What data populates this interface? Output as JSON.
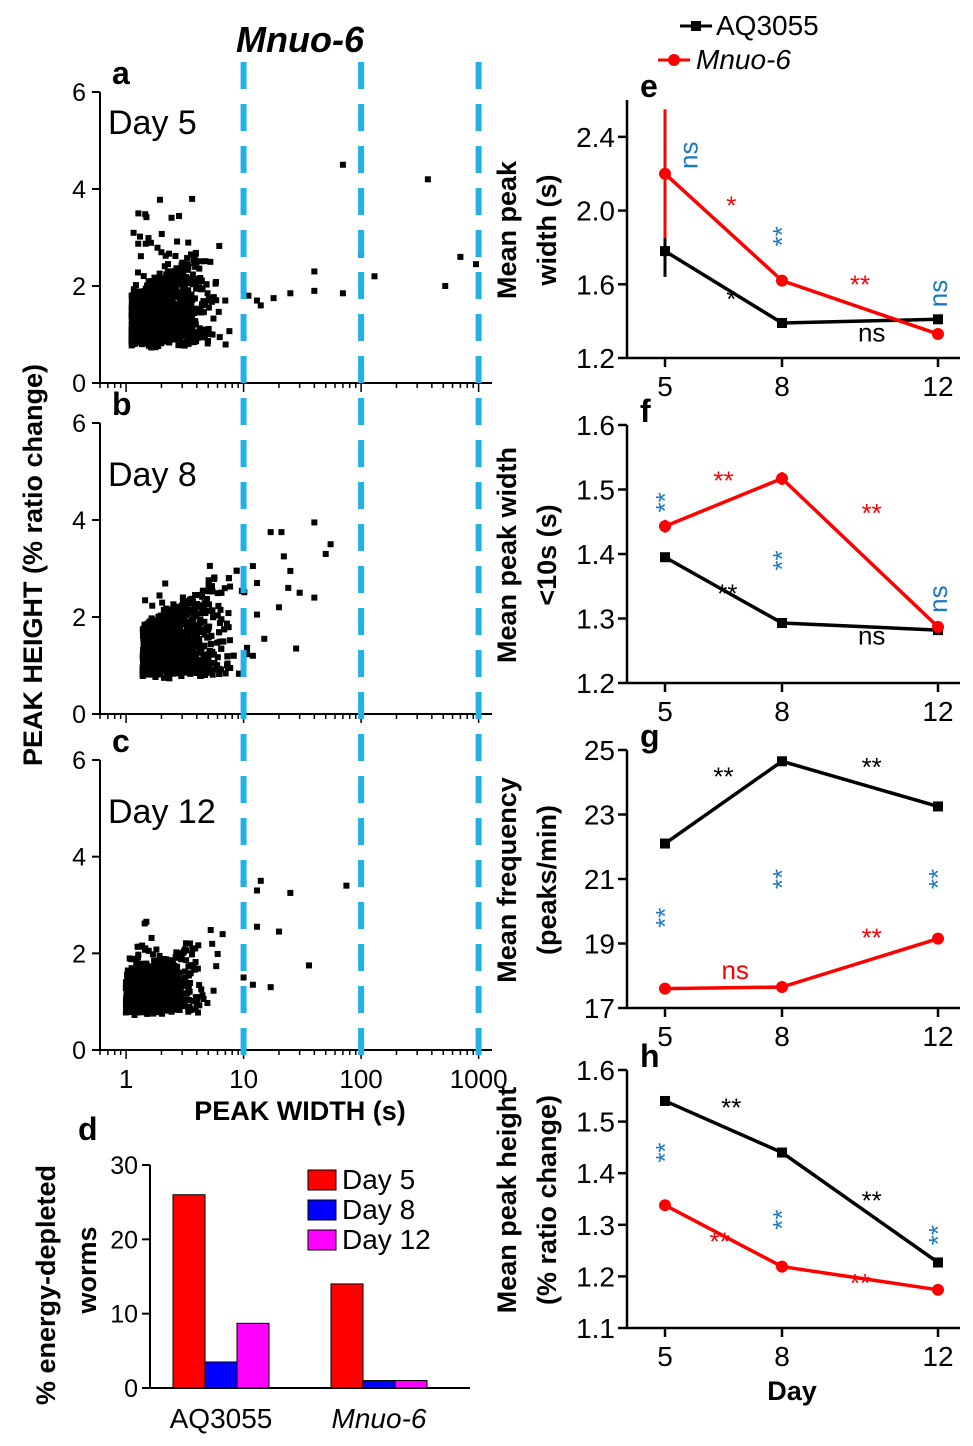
{
  "figure_title": "Mnuo-6",
  "legend_top": {
    "items": [
      {
        "label": "AQ3055",
        "color": "#000000"
      },
      {
        "label": "Mnuo-6",
        "color": "#ff0000"
      }
    ]
  },
  "colors": {
    "aq": "#000000",
    "mnuo": "#ff0000",
    "ns_blue": "#1a78c2",
    "dash": "#22b0e6",
    "day5": "#ff0000",
    "day8": "#0000ff",
    "day12": "#ff00ff"
  },
  "chart_data": [
    {
      "id": "scatter",
      "type": "scatter",
      "panels": [
        {
          "letter": "a",
          "label": "Day 5"
        },
        {
          "letter": "b",
          "label": "Day 8"
        },
        {
          "letter": "c",
          "label": "Day 12"
        }
      ],
      "xscale": "log",
      "xlim": [
        0.6,
        1300
      ],
      "xticks": [
        "1",
        "10",
        "100",
        "1000"
      ],
      "ylim": [
        0,
        6
      ],
      "yticks": [
        "0",
        "2",
        "4",
        "6"
      ],
      "ylabel": "PEAK HEIGHT (% ratio change)",
      "xlabel": "PEAK WIDTH (s)",
      "threshold_lines": [
        10,
        100,
        1000
      ],
      "outliers": [
        [
          [
            70,
            4.5
          ],
          [
            100,
            2.65
          ],
          [
            40,
            2.3
          ],
          [
            130,
            2.2
          ],
          [
            370,
            4.2
          ],
          [
            700,
            2.6
          ],
          [
            950,
            2.45
          ],
          [
            520,
            2.0
          ],
          [
            40,
            1.9
          ],
          [
            70,
            1.85
          ],
          [
            25,
            1.85
          ],
          [
            18,
            1.75
          ],
          [
            11,
            1.8
          ],
          [
            13,
            1.7
          ],
          [
            14,
            1.6
          ]
        ],
        [
          [
            17,
            3.75
          ],
          [
            40,
            3.95
          ],
          [
            55,
            3.5
          ],
          [
            21,
            3.75
          ],
          [
            50,
            3.3
          ],
          [
            22,
            3.25
          ],
          [
            12,
            3.05
          ],
          [
            25,
            2.95
          ],
          [
            13,
            2.7
          ],
          [
            24,
            2.6
          ],
          [
            30,
            2.5
          ],
          [
            40,
            2.4
          ],
          [
            20,
            2.2
          ],
          [
            13,
            2.05
          ],
          [
            28,
            1.35
          ],
          [
            12,
            1.2
          ],
          [
            15,
            1.55
          ]
        ],
        [
          [
            10,
            3.45
          ],
          [
            14,
            3.5
          ],
          [
            13,
            3.3
          ],
          [
            25,
            3.25
          ],
          [
            75,
            3.4
          ],
          [
            13,
            2.55
          ],
          [
            20,
            2.45
          ],
          [
            36,
            1.75
          ],
          [
            10,
            1.5
          ],
          [
            12,
            1.35
          ],
          [
            17,
            1.3
          ]
        ]
      ]
    },
    {
      "id": "bars",
      "type": "bar",
      "letter": "d",
      "ylabel_line1": "% energy-depleted",
      "ylabel_line2": "worms",
      "ylim": [
        0,
        30
      ],
      "yticks": [
        "0",
        "10",
        "20",
        "30"
      ],
      "categories": [
        "AQ3055",
        "Mnuo-6"
      ],
      "series": [
        {
          "name": "Day 5",
          "values": [
            26,
            14
          ]
        },
        {
          "name": "Day 8",
          "values": [
            3.5,
            1
          ]
        },
        {
          "name": "Day 12",
          "values": [
            8.7,
            1
          ]
        }
      ]
    },
    {
      "id": "e",
      "type": "line",
      "letter": "e",
      "ylabel_line1": "Mean peak",
      "ylabel_line2": "width (s)",
      "x": [
        5,
        8,
        12
      ],
      "ylim": [
        1.2,
        2.6
      ],
      "yticks": [
        "1.2",
        "1.6",
        "2.0",
        "2.4"
      ],
      "series": [
        {
          "name": "AQ3055",
          "values": [
            1.78,
            1.39,
            1.41
          ],
          "errors": [
            0.14,
            0.025,
            0.025
          ]
        },
        {
          "name": "Mnuo-6",
          "values": [
            2.2,
            1.62,
            1.33
          ],
          "errors": [
            0.35,
            0.02,
            0.015
          ]
        }
      ],
      "annotations": [
        {
          "text": "ns",
          "x": 5.6,
          "y": 2.3,
          "color": "blue",
          "vertical": true
        },
        {
          "text": "*",
          "x": 6.7,
          "y": 1.98,
          "color": "red"
        },
        {
          "text": "*",
          "x": 6.7,
          "y": 1.47,
          "color": "black"
        },
        {
          "text": "**",
          "x": 8,
          "y": 1.86,
          "color": "blue",
          "vertical": true
        },
        {
          "text": "**",
          "x": 10,
          "y": 1.55,
          "color": "red"
        },
        {
          "text": "ns",
          "x": 10.3,
          "y": 1.29,
          "color": "black"
        },
        {
          "text": "ns",
          "x": 12,
          "y": 1.55,
          "color": "blue",
          "vertical": true
        }
      ]
    },
    {
      "id": "f",
      "type": "line",
      "letter": "f",
      "ylabel_line1": "Mean peak width",
      "ylabel_line2": "<10s (s)",
      "x": [
        5,
        8,
        12
      ],
      "ylim": [
        1.2,
        1.6
      ],
      "yticks": [
        "1.2",
        "1.3",
        "1.4",
        "1.5",
        "1.6"
      ],
      "series": [
        {
          "name": "AQ3055",
          "values": [
            1.395,
            1.293,
            1.282
          ],
          "errors": [
            0.005,
            0.004,
            0.004
          ]
        },
        {
          "name": "Mnuo-6",
          "values": [
            1.443,
            1.517,
            1.287
          ],
          "errors": [
            0.01,
            0.01,
            0.004
          ]
        }
      ],
      "annotations": [
        {
          "text": "**",
          "x": 5,
          "y": 1.48,
          "color": "blue",
          "vertical": true
        },
        {
          "text": "**",
          "x": 6.5,
          "y": 1.5,
          "color": "red"
        },
        {
          "text": "**",
          "x": 6.6,
          "y": 1.325,
          "color": "black"
        },
        {
          "text": "**",
          "x": 8,
          "y": 1.39,
          "color": "blue",
          "vertical": true
        },
        {
          "text": "**",
          "x": 10.3,
          "y": 1.45,
          "color": "red"
        },
        {
          "text": "ns",
          "x": 10.3,
          "y": 1.26,
          "color": "black"
        },
        {
          "text": "ns",
          "x": 12,
          "y": 1.33,
          "color": "blue",
          "vertical": true
        }
      ]
    },
    {
      "id": "g",
      "type": "line",
      "letter": "g",
      "ylabel_line1": "Mean frequency",
      "ylabel_line2": "(peaks/min)",
      "x": [
        5,
        8,
        12
      ],
      "ylim": [
        17,
        25
      ],
      "yticks": [
        "17",
        "19",
        "21",
        "23",
        "25"
      ],
      "series": [
        {
          "name": "AQ3055",
          "values": [
            22.1,
            24.65,
            23.25
          ],
          "errors": [
            0.08,
            0.08,
            0.08
          ]
        },
        {
          "name": "Mnuo-6",
          "values": [
            17.6,
            17.65,
            19.15
          ],
          "errors": [
            0.1,
            0.08,
            0.15
          ]
        }
      ],
      "annotations": [
        {
          "text": "**",
          "x": 6.5,
          "y": 23.9,
          "color": "black"
        },
        {
          "text": "**",
          "x": 10.3,
          "y": 24.2,
          "color": "black"
        },
        {
          "text": "**",
          "x": 5,
          "y": 19.8,
          "color": "blue",
          "vertical": true
        },
        {
          "text": "**",
          "x": 8,
          "y": 21.0,
          "color": "blue",
          "vertical": true
        },
        {
          "text": "**",
          "x": 12,
          "y": 21.0,
          "color": "blue",
          "vertical": true
        },
        {
          "text": "ns",
          "x": 6.8,
          "y": 17.9,
          "color": "red"
        },
        {
          "text": "**",
          "x": 10.3,
          "y": 18.9,
          "color": "red"
        }
      ]
    },
    {
      "id": "h",
      "type": "line",
      "letter": "h",
      "ylabel_line1": "Mean peak height",
      "ylabel_line2": "(% ratio change)",
      "xlabel": "Day",
      "x": [
        5,
        8,
        12
      ],
      "ylim": [
        1.1,
        1.6
      ],
      "yticks": [
        "1.1",
        "1.2",
        "1.3",
        "1.4",
        "1.5",
        "1.6"
      ],
      "series": [
        {
          "name": "AQ3055",
          "values": [
            1.54,
            1.44,
            1.227
          ],
          "errors": [
            0.005,
            0.004,
            0.004
          ]
        },
        {
          "name": "Mnuo-6",
          "values": [
            1.338,
            1.219,
            1.174
          ],
          "errors": [
            0.006,
            0.004,
            0.004
          ]
        }
      ],
      "annotations": [
        {
          "text": "**",
          "x": 6.7,
          "y": 1.51,
          "color": "black"
        },
        {
          "text": "**",
          "x": 5,
          "y": 1.44,
          "color": "blue",
          "vertical": true
        },
        {
          "text": "**",
          "x": 8,
          "y": 1.31,
          "color": "blue",
          "vertical": true
        },
        {
          "text": "**",
          "x": 10.3,
          "y": 1.33,
          "color": "black"
        },
        {
          "text": "**",
          "x": 12,
          "y": 1.28,
          "color": "blue",
          "vertical": true
        },
        {
          "text": "**",
          "x": 6.4,
          "y": 1.25,
          "color": "red"
        },
        {
          "text": "**",
          "x": 10,
          "y": 1.17,
          "color": "red"
        }
      ]
    }
  ]
}
